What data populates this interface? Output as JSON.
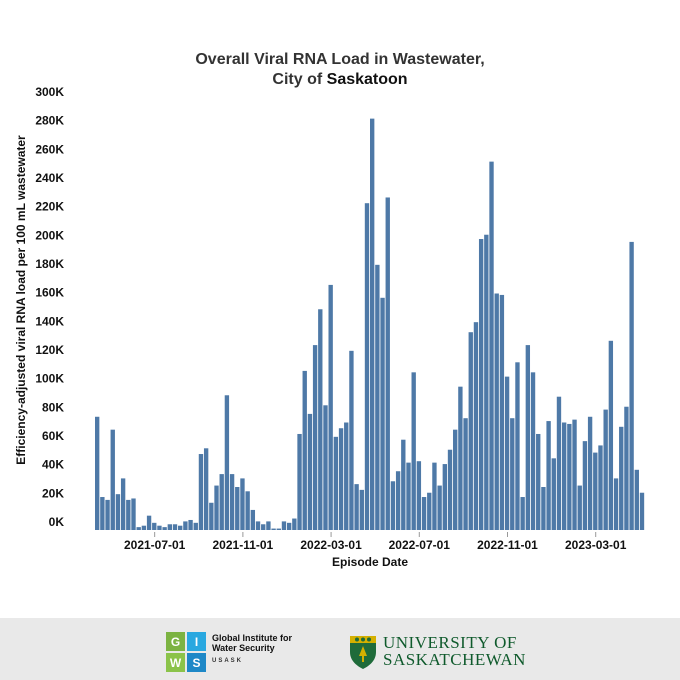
{
  "header": {
    "title_line1": "Overall Viral RNA Load in Wastewater,",
    "title_prefix": "City of ",
    "title_city": "Saskatoon"
  },
  "chart_data": {
    "type": "bar",
    "title": "Overall Viral RNA Load in Wastewater, City of Saskatoon",
    "xlabel": "Episode Date",
    "ylabel": "Efficiency-adjusted viral RNA load per 100 mL wastewater",
    "ylim": [
      0,
      300000
    ],
    "yticks": [
      0,
      20000,
      40000,
      60000,
      80000,
      100000,
      120000,
      140000,
      160000,
      180000,
      200000,
      220000,
      240000,
      260000,
      280000,
      300000
    ],
    "ytick_labels": [
      "0K",
      "20K",
      "40K",
      "60K",
      "80K",
      "100K",
      "120K",
      "140K",
      "160K",
      "180K",
      "200K",
      "220K",
      "240K",
      "260K",
      "280K",
      "300K"
    ],
    "xticks": [
      {
        "label": "2021-07-01",
        "index": 11
      },
      {
        "label": "2021-11-01",
        "index": 28
      },
      {
        "label": "2022-03-01",
        "index": 45
      },
      {
        "label": "2022-07-01",
        "index": 62
      },
      {
        "label": "2022-11-01",
        "index": 79
      },
      {
        "label": "2023-03-01",
        "index": 96
      }
    ],
    "categories_note": "weekly episodes",
    "values": [
      79000,
      23000,
      21000,
      70000,
      25000,
      36000,
      21000,
      22000,
      2000,
      3000,
      10000,
      5000,
      3000,
      2000,
      4000,
      4000,
      3000,
      6000,
      7000,
      5000,
      53000,
      57000,
      19000,
      31000,
      39000,
      94000,
      39000,
      30000,
      36000,
      27000,
      14000,
      6000,
      4000,
      6000,
      1000,
      1000,
      6000,
      5000,
      8000,
      67000,
      111000,
      81000,
      129000,
      154000,
      87000,
      171000,
      65000,
      71000,
      75000,
      125000,
      32000,
      28000,
      228000,
      287000,
      185000,
      162000,
      232000,
      34000,
      41000,
      63000,
      47000,
      110000,
      48000,
      23000,
      26000,
      47000,
      31000,
      46000,
      56000,
      70000,
      100000,
      78000,
      138000,
      145000,
      203000,
      206000,
      257000,
      165000,
      164000,
      107000,
      78000,
      117000,
      23000,
      129000,
      110000,
      67000,
      30000,
      76000,
      50000,
      93000,
      75000,
      74000,
      77000,
      31000,
      62000,
      79000,
      54000,
      59000,
      84000,
      132000,
      36000,
      72000,
      86000,
      201000,
      42000,
      26000
    ],
    "bar_color": "#4e79a7",
    "grid": false,
    "legend": "none"
  },
  "footer": {
    "giws_letters": [
      "G",
      "I",
      "W",
      "S"
    ],
    "giws_colors": [
      "#7cb342",
      "#29a8e0",
      "#8bc34a",
      "#1e88c7"
    ],
    "giws_name_line1": "Global Institute for",
    "giws_name_line2": "Water Security",
    "giws_sub": "USASK",
    "uofs_line1": "UNIVERSITY OF",
    "uofs_line2": "SASKATCHEWAN",
    "uofs_color": "#0f5a2c",
    "crest_color": "#1f6b3a",
    "crest_accent": "#d4b000"
  }
}
